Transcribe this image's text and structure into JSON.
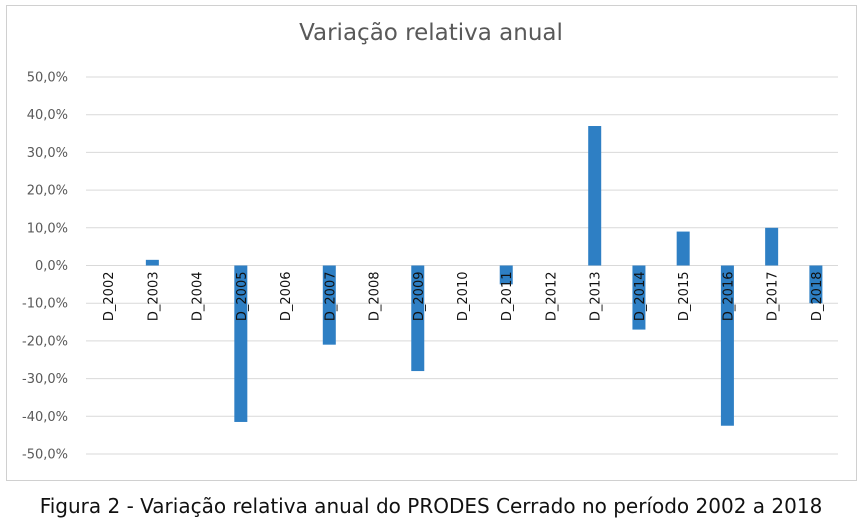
{
  "caption": "Figura 2 - Variação relativa anual do PRODES Cerrado no período 2002 a 2018",
  "colors": {
    "bar": "#2e7fc4",
    "grid": "#d9d9d9",
    "axis_text": "#595959",
    "category_text": "#111111"
  },
  "chart_data": {
    "type": "bar",
    "title": "Variação relativa anual",
    "xlabel": "",
    "ylabel": "",
    "ylim": [
      -50,
      50
    ],
    "yticks": [
      "50,0%",
      "40,0%",
      "30,0%",
      "20,0%",
      "10,0%",
      "0,0%",
      "-10,0%",
      "-20,0%",
      "-30,0%",
      "-40,0%",
      "-50,0%"
    ],
    "grid": true,
    "legend": "none",
    "categories": [
      "D_2002",
      "D_2003",
      "D_2004",
      "D_2005",
      "D_2006",
      "D_2007",
      "D_2008",
      "D_2009",
      "D_2010",
      "D_2011",
      "D_2012",
      "D_2013",
      "D_2014",
      "D_2015",
      "D_2016",
      "D_2017",
      "D_2018"
    ],
    "values": [
      0,
      1.5,
      0,
      -41.5,
      0,
      -21,
      0,
      -28,
      0,
      -5,
      0,
      37,
      -17,
      9,
      -42.5,
      10,
      -10
    ]
  }
}
